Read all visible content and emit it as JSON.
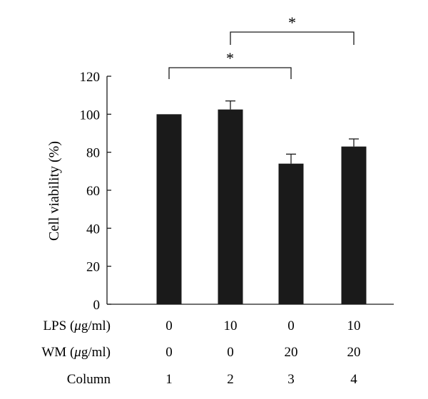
{
  "chart_data": {
    "type": "bar",
    "ylabel": "Cell viability (%)",
    "ylim": [
      0,
      120
    ],
    "yticks": [
      0,
      20,
      40,
      60,
      80,
      100,
      120
    ],
    "grid": false,
    "categories": [
      "1",
      "2",
      "3",
      "4"
    ],
    "values": [
      100,
      102.5,
      74,
      83
    ],
    "errors": [
      0,
      4.5,
      5,
      4
    ],
    "bar_color": "#1a1a1a",
    "conditions": [
      {
        "label": "LPS (",
        "unit_symbol": "μ",
        "unit_rest": "g/ml)",
        "values": [
          "0",
          "10",
          "0",
          "10"
        ]
      },
      {
        "label": "WM (",
        "unit_symbol": "μ",
        "unit_rest": "g/ml)",
        "values": [
          "0",
          "0",
          "20",
          "20"
        ]
      },
      {
        "label": "Column",
        "unit_symbol": "",
        "unit_rest": "",
        "values": [
          "1",
          "2",
          "3",
          "4"
        ]
      }
    ],
    "significance": [
      {
        "from": 1,
        "to": 3,
        "label": "*"
      },
      {
        "from": 2,
        "to": 4,
        "label": "*"
      }
    ]
  }
}
